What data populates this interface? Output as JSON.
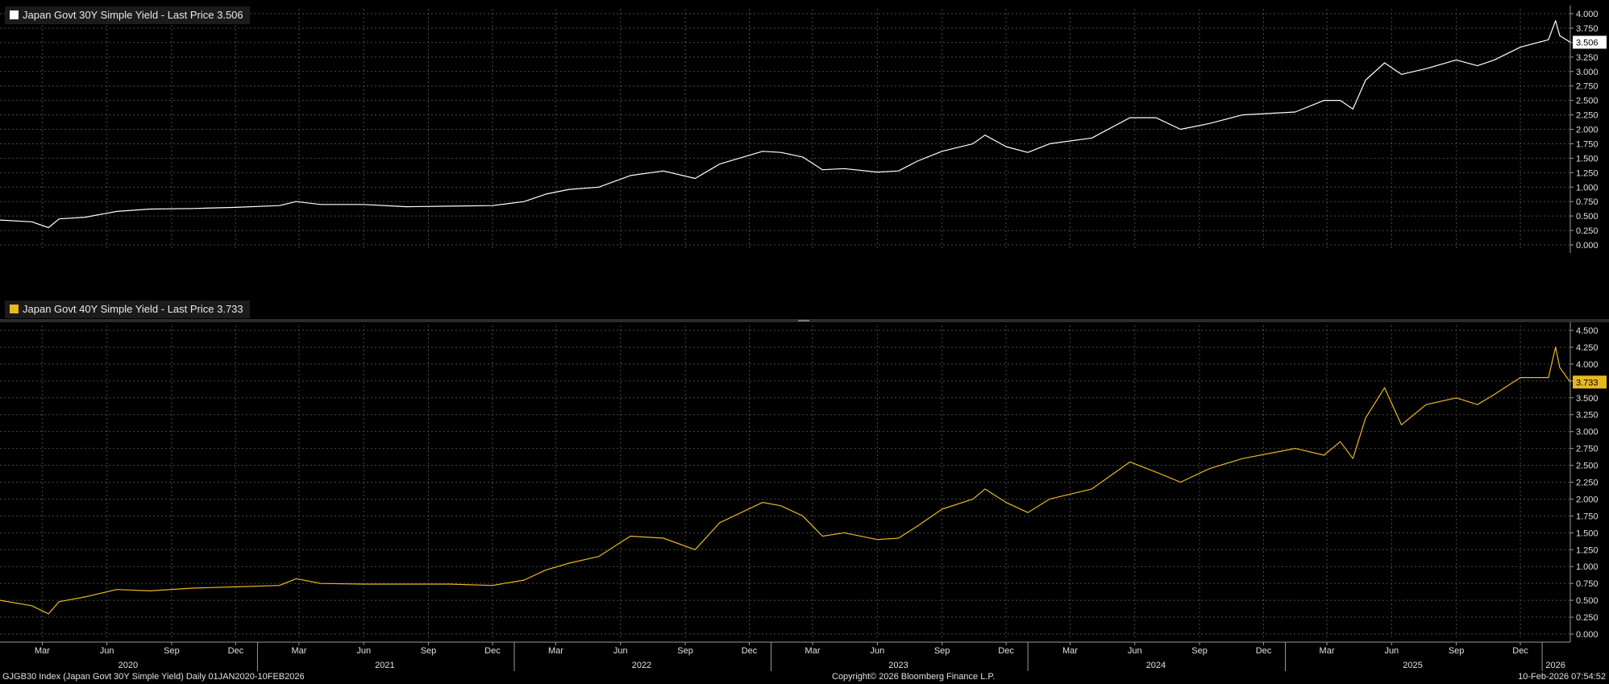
{
  "panels": [
    {
      "legend": "Japan Govt 30Y Simple Yield - Last Price 3.506",
      "last_label": "3.506"
    },
    {
      "legend": "Japan Govt 40Y Simple Yield - Last Price 3.733",
      "last_label": "3.733"
    }
  ],
  "footer": {
    "left": "GJGB30 Index (Japan Govt 30Y Simple Yield) Daily 01JAN2020-10FEB2026",
    "center": "Copyright© 2026 Bloomberg Finance L.P.",
    "right": "10-Feb-2026 07:54:52"
  },
  "colors": {
    "background": "#000000",
    "grid": "#4a4a4a",
    "series_30y": "#ffffff",
    "series_40y": "#e8b820"
  },
  "chart_data": [
    {
      "type": "line",
      "title": "Japan Govt 30Y Simple Yield - Last Price 3.506",
      "x_range": [
        "2020-01-01",
        "2026-02-10"
      ],
      "ylim": [
        0,
        4.0
      ],
      "yticks": [
        "4.000",
        "3.750",
        "3.500",
        "3.250",
        "3.000",
        "2.750",
        "2.500",
        "2.250",
        "2.000",
        "1.750",
        "1.500",
        "1.250",
        "1.000",
        "0.750",
        "0.500",
        "0.250",
        "0.000"
      ],
      "grid": true,
      "last_price": 3.506,
      "series": [
        {
          "name": "Japan Govt 30Y Simple Yield",
          "color": "#ffffff",
          "points": [
            [
              "2020-01-01",
              0.43
            ],
            [
              "2020-02-15",
              0.4
            ],
            [
              "2020-03-10",
              0.3
            ],
            [
              "2020-03-25",
              0.45
            ],
            [
              "2020-05-01",
              0.48
            ],
            [
              "2020-06-15",
              0.58
            ],
            [
              "2020-08-01",
              0.62
            ],
            [
              "2020-10-01",
              0.63
            ],
            [
              "2020-12-01",
              0.65
            ],
            [
              "2021-02-01",
              0.68
            ],
            [
              "2021-02-25",
              0.75
            ],
            [
              "2021-04-01",
              0.7
            ],
            [
              "2021-06-01",
              0.7
            ],
            [
              "2021-08-01",
              0.66
            ],
            [
              "2021-10-01",
              0.67
            ],
            [
              "2021-12-01",
              0.68
            ],
            [
              "2022-01-15",
              0.75
            ],
            [
              "2022-02-15",
              0.88
            ],
            [
              "2022-03-20",
              0.96
            ],
            [
              "2022-05-01",
              1.0
            ],
            [
              "2022-06-15",
              1.2
            ],
            [
              "2022-08-01",
              1.28
            ],
            [
              "2022-09-15",
              1.15
            ],
            [
              "2022-10-20",
              1.4
            ],
            [
              "2022-12-20",
              1.62
            ],
            [
              "2023-01-15",
              1.6
            ],
            [
              "2023-02-15",
              1.52
            ],
            [
              "2023-03-15",
              1.3
            ],
            [
              "2023-04-15",
              1.32
            ],
            [
              "2023-06-01",
              1.26
            ],
            [
              "2023-07-01",
              1.28
            ],
            [
              "2023-07-28",
              1.45
            ],
            [
              "2023-09-01",
              1.62
            ],
            [
              "2023-10-15",
              1.75
            ],
            [
              "2023-11-01",
              1.9
            ],
            [
              "2023-12-01",
              1.7
            ],
            [
              "2024-01-01",
              1.6
            ],
            [
              "2024-02-01",
              1.75
            ],
            [
              "2024-04-01",
              1.85
            ],
            [
              "2024-05-25",
              2.2
            ],
            [
              "2024-07-01",
              2.2
            ],
            [
              "2024-08-05",
              2.0
            ],
            [
              "2024-09-15",
              2.1
            ],
            [
              "2024-11-01",
              2.25
            ],
            [
              "2025-01-15",
              2.3
            ],
            [
              "2025-02-25",
              2.5
            ],
            [
              "2025-03-20",
              2.5
            ],
            [
              "2025-04-07",
              2.35
            ],
            [
              "2025-04-25",
              2.85
            ],
            [
              "2025-05-22",
              3.15
            ],
            [
              "2025-06-15",
              2.95
            ],
            [
              "2025-07-20",
              3.05
            ],
            [
              "2025-09-01",
              3.2
            ],
            [
              "2025-10-01",
              3.1
            ],
            [
              "2025-10-25",
              3.2
            ],
            [
              "2025-12-01",
              3.42
            ],
            [
              "2026-01-10",
              3.55
            ],
            [
              "2026-01-20",
              3.88
            ],
            [
              "2026-01-26",
              3.62
            ],
            [
              "2026-02-10",
              3.506
            ]
          ]
        }
      ]
    },
    {
      "type": "line",
      "title": "Japan Govt 40Y Simple Yield - Last Price 3.733",
      "x_range": [
        "2020-01-01",
        "2026-02-10"
      ],
      "ylim": [
        0,
        4.5
      ],
      "yticks": [
        "4.500",
        "4.250",
        "4.000",
        "3.750",
        "3.500",
        "3.250",
        "3.000",
        "2.750",
        "2.500",
        "2.250",
        "2.000",
        "1.750",
        "1.500",
        "1.250",
        "1.000",
        "0.750",
        "0.500",
        "0.250",
        "0.000"
      ],
      "grid": true,
      "last_price": 3.733,
      "series": [
        {
          "name": "Japan Govt 40Y Simple Yield",
          "color": "#e8b820",
          "points": [
            [
              "2020-01-01",
              0.5
            ],
            [
              "2020-02-15",
              0.42
            ],
            [
              "2020-03-10",
              0.3
            ],
            [
              "2020-03-25",
              0.48
            ],
            [
              "2020-05-01",
              0.55
            ],
            [
              "2020-06-15",
              0.66
            ],
            [
              "2020-08-01",
              0.64
            ],
            [
              "2020-10-01",
              0.68
            ],
            [
              "2020-12-01",
              0.7
            ],
            [
              "2021-02-01",
              0.72
            ],
            [
              "2021-02-25",
              0.82
            ],
            [
              "2021-04-01",
              0.75
            ],
            [
              "2021-06-01",
              0.74
            ],
            [
              "2021-08-01",
              0.74
            ],
            [
              "2021-10-01",
              0.74
            ],
            [
              "2021-12-01",
              0.72
            ],
            [
              "2022-01-15",
              0.8
            ],
            [
              "2022-02-15",
              0.95
            ],
            [
              "2022-03-20",
              1.05
            ],
            [
              "2022-05-01",
              1.15
            ],
            [
              "2022-06-15",
              1.45
            ],
            [
              "2022-08-01",
              1.42
            ],
            [
              "2022-09-15",
              1.25
            ],
            [
              "2022-10-20",
              1.65
            ],
            [
              "2022-12-20",
              1.95
            ],
            [
              "2023-01-15",
              1.9
            ],
            [
              "2023-02-15",
              1.75
            ],
            [
              "2023-03-15",
              1.45
            ],
            [
              "2023-04-15",
              1.5
            ],
            [
              "2023-06-01",
              1.4
            ],
            [
              "2023-07-01",
              1.42
            ],
            [
              "2023-07-28",
              1.6
            ],
            [
              "2023-09-01",
              1.85
            ],
            [
              "2023-10-15",
              2.0
            ],
            [
              "2023-11-01",
              2.15
            ],
            [
              "2023-12-01",
              1.95
            ],
            [
              "2024-01-01",
              1.8
            ],
            [
              "2024-02-01",
              2.0
            ],
            [
              "2024-04-01",
              2.15
            ],
            [
              "2024-05-25",
              2.55
            ],
            [
              "2024-07-01",
              2.4
            ],
            [
              "2024-08-05",
              2.25
            ],
            [
              "2024-09-15",
              2.45
            ],
            [
              "2024-11-01",
              2.6
            ],
            [
              "2025-01-15",
              2.75
            ],
            [
              "2025-02-25",
              2.65
            ],
            [
              "2025-03-20",
              2.85
            ],
            [
              "2025-04-07",
              2.6
            ],
            [
              "2025-04-25",
              3.2
            ],
            [
              "2025-05-22",
              3.65
            ],
            [
              "2025-06-15",
              3.1
            ],
            [
              "2025-07-20",
              3.4
            ],
            [
              "2025-09-01",
              3.5
            ],
            [
              "2025-10-01",
              3.4
            ],
            [
              "2025-10-25",
              3.55
            ],
            [
              "2025-12-01",
              3.8
            ],
            [
              "2026-01-10",
              3.8
            ],
            [
              "2026-01-20",
              4.25
            ],
            [
              "2026-01-26",
              3.95
            ],
            [
              "2026-02-10",
              3.733
            ]
          ]
        }
      ]
    }
  ],
  "x_axis": {
    "months": [
      {
        "date": "2020-03-01",
        "label": "Mar"
      },
      {
        "date": "2020-06-01",
        "label": "Jun"
      },
      {
        "date": "2020-09-01",
        "label": "Sep"
      },
      {
        "date": "2020-12-01",
        "label": "Dec"
      },
      {
        "date": "2021-03-01",
        "label": "Mar"
      },
      {
        "date": "2021-06-01",
        "label": "Jun"
      },
      {
        "date": "2021-09-01",
        "label": "Sep"
      },
      {
        "date": "2021-12-01",
        "label": "Dec"
      },
      {
        "date": "2022-03-01",
        "label": "Mar"
      },
      {
        "date": "2022-06-01",
        "label": "Jun"
      },
      {
        "date": "2022-09-01",
        "label": "Sep"
      },
      {
        "date": "2022-12-01",
        "label": "Dec"
      },
      {
        "date": "2023-03-01",
        "label": "Mar"
      },
      {
        "date": "2023-06-01",
        "label": "Jun"
      },
      {
        "date": "2023-09-01",
        "label": "Sep"
      },
      {
        "date": "2023-12-01",
        "label": "Dec"
      },
      {
        "date": "2024-03-01",
        "label": "Mar"
      },
      {
        "date": "2024-06-01",
        "label": "Jun"
      },
      {
        "date": "2024-09-01",
        "label": "Sep"
      },
      {
        "date": "2024-12-01",
        "label": "Dec"
      },
      {
        "date": "2025-03-01",
        "label": "Mar"
      },
      {
        "date": "2025-06-01",
        "label": "Jun"
      },
      {
        "date": "2025-09-01",
        "label": "Sep"
      },
      {
        "date": "2025-12-01",
        "label": "Dec"
      }
    ],
    "years": [
      {
        "date": "2020-07-01",
        "label": "2020"
      },
      {
        "date": "2021-07-01",
        "label": "2021"
      },
      {
        "date": "2022-07-01",
        "label": "2022"
      },
      {
        "date": "2023-07-01",
        "label": "2023"
      },
      {
        "date": "2024-07-01",
        "label": "2024"
      },
      {
        "date": "2025-07-01",
        "label": "2025"
      },
      {
        "date": "2026-01-20",
        "label": "2026"
      }
    ],
    "year_boundaries": [
      "2021-01-01",
      "2022-01-01",
      "2023-01-01",
      "2024-01-01",
      "2025-01-01",
      "2026-01-01"
    ]
  }
}
